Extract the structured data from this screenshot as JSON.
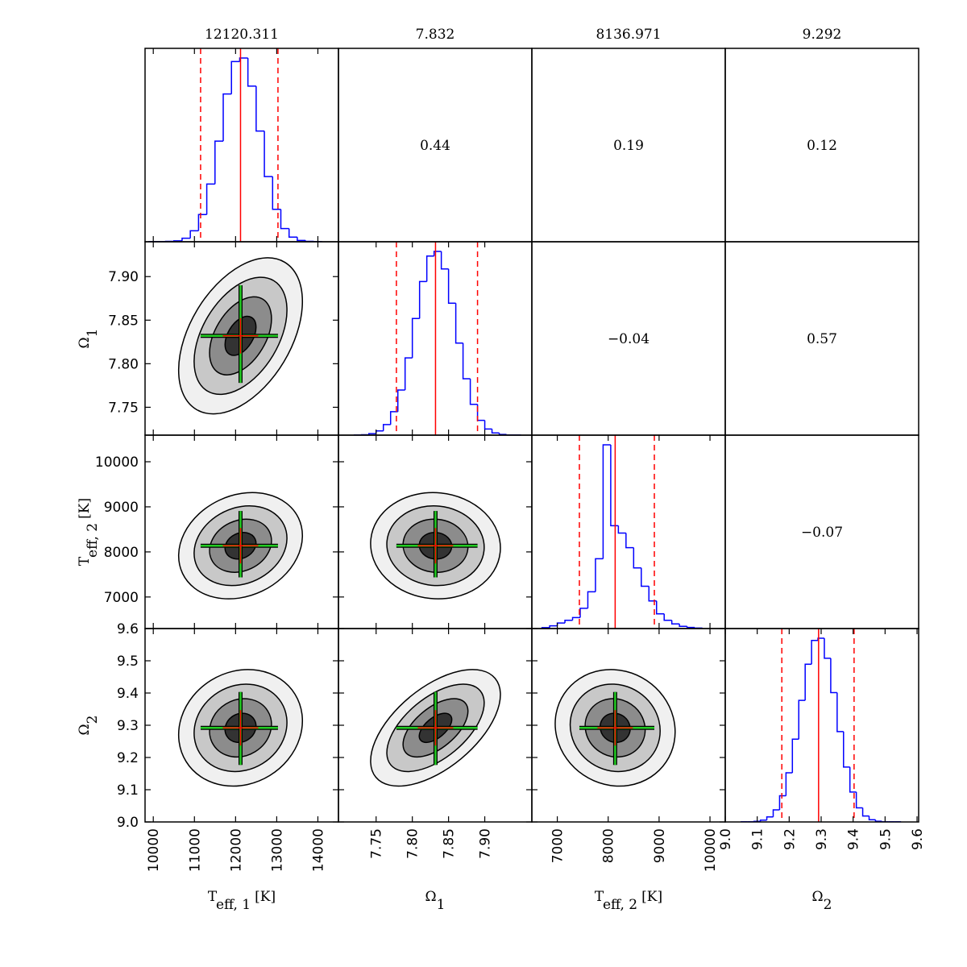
{
  "chart_data": {
    "type": "corner",
    "parameters": [
      {
        "label": {
          "base": "T",
          "sub": "eff, 1",
          "unit": "[K]"
        },
        "title": "12120.311",
        "median": 12120.311,
        "lower": 11150,
        "upper": 13030,
        "xlim": [
          9800,
          14500
        ],
        "xticks": [
          10000,
          11000,
          12000,
          13000,
          14000
        ],
        "bins": [
          9900,
          10100,
          10300,
          10500,
          10700,
          10900,
          11100,
          11300,
          11500,
          11700,
          11900,
          12100,
          12300,
          12500,
          12700,
          12900,
          13100,
          13300,
          13500,
          13700,
          13900,
          14100
        ],
        "counts": [
          1,
          1,
          2,
          5,
          19,
          59,
          146,
          310,
          540,
          793,
          967,
          986,
          835,
          594,
          350,
          174,
          71,
          25,
          7,
          2,
          1
        ]
      },
      {
        "label": {
          "base": "Ω",
          "sub": "1",
          "unit": ""
        },
        "title": "7.832",
        "median": 7.832,
        "lower": 7.778,
        "upper": 7.89,
        "xlim": [
          7.698,
          7.965
        ],
        "ylim": [
          7.718,
          7.94
        ],
        "xticks": [
          {
            "value": 7.75,
            "label": "7.75"
          },
          {
            "value": 7.8,
            "label": "7.80"
          },
          {
            "value": 7.85,
            "label": "7.85"
          },
          {
            "value": 7.9,
            "label": "7.90"
          }
        ],
        "yticks": [
          {
            "value": 7.75,
            "label": "7.75"
          },
          {
            "value": 7.8,
            "label": "7.80"
          },
          {
            "value": 7.85,
            "label": "7.85"
          },
          {
            "value": 7.9,
            "label": "7.90"
          }
        ],
        "bins": [
          7.72,
          7.73,
          7.74,
          7.75,
          7.76,
          7.77,
          7.78,
          7.79,
          7.8,
          7.81,
          7.82,
          7.83,
          7.84,
          7.85,
          7.86,
          7.87,
          7.88,
          7.89,
          7.9,
          7.91,
          7.92,
          7.93,
          7.94,
          7.95
        ],
        "counts": [
          1,
          2,
          8,
          23,
          57,
          127,
          244,
          418,
          631,
          831,
          969,
          994,
          899,
          714,
          498,
          305,
          167,
          80,
          33,
          12,
          4,
          1,
          1
        ]
      },
      {
        "label": {
          "base": "T",
          "sub": "eff, 2",
          "unit": "[K]"
        },
        "title": "8136.971",
        "median": 8136.971,
        "lower": 7434,
        "upper": 8907,
        "xlim": [
          6500,
          10300
        ],
        "ylim": [
          6300,
          10590
        ],
        "xticks": [
          7000,
          8000,
          9000,
          10000
        ],
        "yticks": [
          7000,
          8000,
          9000,
          10000
        ],
        "bins": [
          6700,
          6850,
          7000,
          7150,
          7300,
          7450,
          7600,
          7750,
          7900,
          8050,
          8200,
          8350,
          8500,
          8650,
          8800,
          8950,
          9100,
          9250,
          9400,
          9550,
          9700,
          9850
        ],
        "counts": [
          5,
          15,
          30,
          45,
          60,
          110,
          200,
          380,
          1000,
          560,
          520,
          440,
          330,
          230,
          150,
          80,
          45,
          25,
          12,
          6,
          3
        ]
      },
      {
        "label": {
          "base": "Ω",
          "sub": "2",
          "unit": ""
        },
        "title": "9.292",
        "median": 9.292,
        "lower": 9.177,
        "upper": 9.403,
        "xlim": [
          9.0,
          9.605
        ],
        "ylim": [
          9.0,
          9.6
        ],
        "xticks": [
          {
            "value": 9.0,
            "label": "9.0"
          },
          9.1,
          9.2,
          9.3,
          9.4,
          9.5,
          9.6
        ],
        "yticks": [
          {
            "value": 9.0,
            "label": "9.0"
          },
          9.1,
          9.2,
          9.3,
          9.4,
          9.5,
          9.6
        ],
        "bins": [
          9.05,
          9.07,
          9.09,
          9.11,
          9.13,
          9.15,
          9.17,
          9.19,
          9.21,
          9.23,
          9.25,
          9.27,
          9.29,
          9.31,
          9.33,
          9.35,
          9.37,
          9.39,
          9.41,
          9.43,
          9.45,
          9.47,
          9.49,
          9.51,
          9.53,
          9.55
        ],
        "counts": [
          1,
          1,
          3,
          10,
          27,
          65,
          141,
          265,
          446,
          655,
          850,
          978,
          990,
          882,
          697,
          487,
          296,
          161,
          76,
          32,
          12,
          4,
          1,
          1,
          1
        ]
      }
    ],
    "correlations": [
      [
        0.44,
        0.19,
        0.12
      ],
      [
        -0.04,
        0.57
      ],
      [
        -0.07
      ]
    ],
    "correlation_labels": [
      [
        "0.44",
        "0.19",
        "0.12"
      ],
      [
        "−0.04",
        "0.57"
      ],
      [
        "−0.07"
      ]
    ],
    "hist_color": "#0000ff",
    "median_color": "#ff0000",
    "crosshair_color": "#22cc22"
  }
}
